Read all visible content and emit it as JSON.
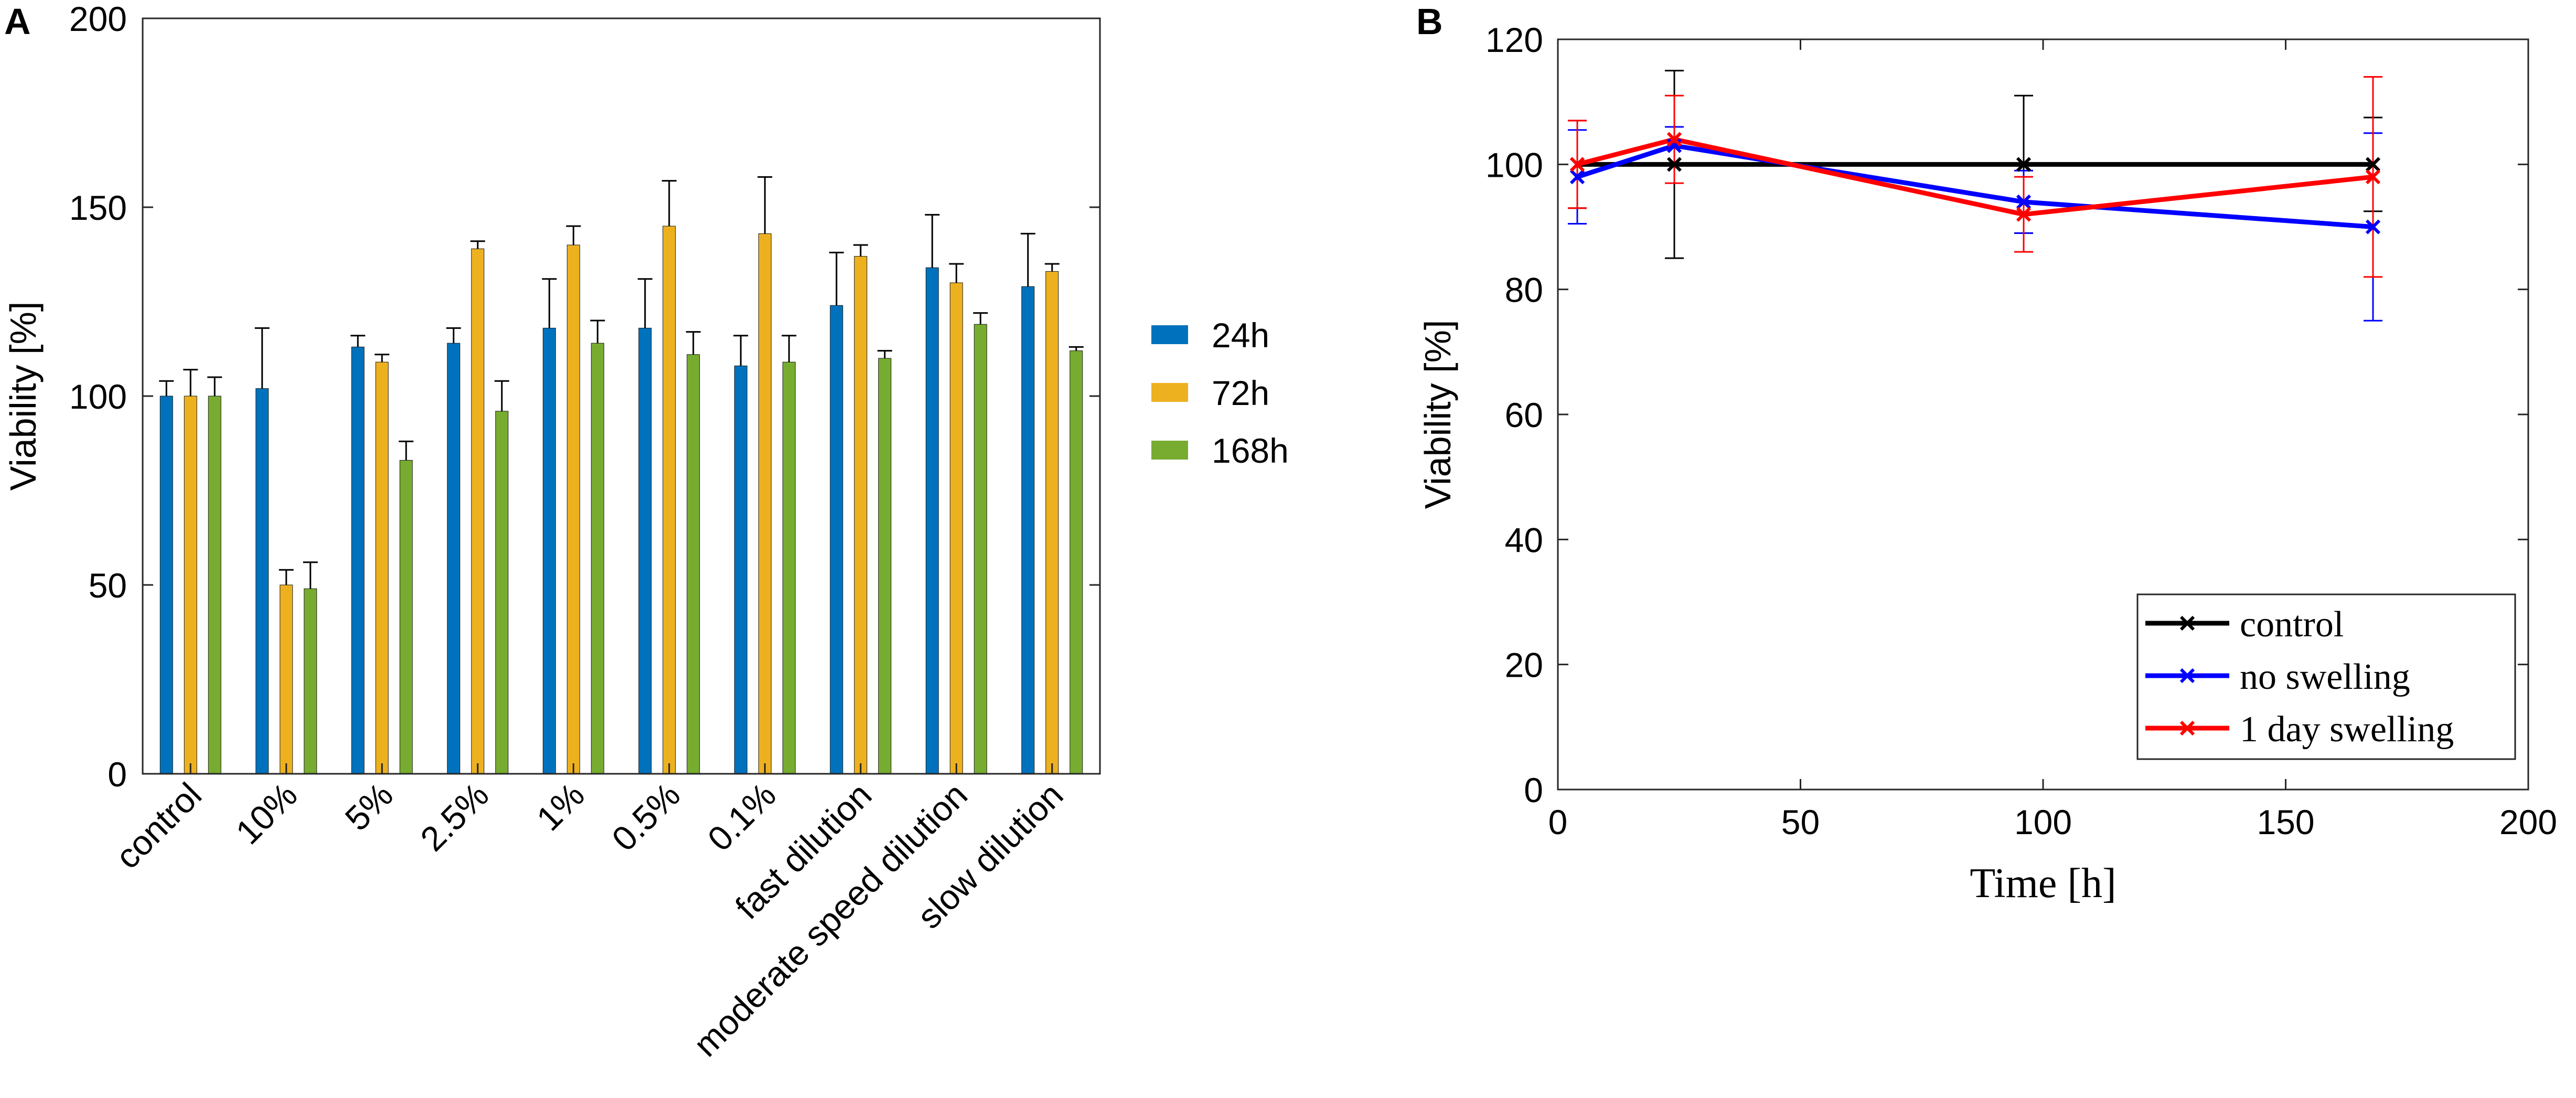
{
  "chart_data": [
    {
      "panel_label": "A",
      "type": "bar",
      "title": "",
      "xlabel": "",
      "ylabel": "Viability [%]",
      "ylim": [
        0,
        200
      ],
      "yticks": [
        0,
        50,
        100,
        150,
        200
      ],
      "grid": false,
      "legend_position": "right",
      "categories": [
        "control",
        "10%",
        "5%",
        "2.5%",
        "1%",
        "0.5%",
        "0.1%",
        "fast dilution",
        "moderate speed dilution",
        "slow dilution"
      ],
      "series": [
        {
          "name": "24h",
          "color": "#0072BD",
          "values": [
            100,
            102,
            113,
            114,
            118,
            118,
            108,
            124,
            134,
            129
          ],
          "errors": [
            4,
            16,
            3,
            4,
            13,
            13,
            8,
            14,
            14,
            14
          ]
        },
        {
          "name": "72h",
          "color": "#EDB120",
          "values": [
            100,
            50,
            109,
            139,
            140,
            145,
            143,
            137,
            130,
            133
          ],
          "errors": [
            7,
            4,
            2,
            2,
            5,
            12,
            15,
            3,
            5,
            2
          ]
        },
        {
          "name": "168h",
          "color": "#77AC30",
          "values": [
            100,
            49,
            83,
            96,
            114,
            111,
            109,
            110,
            119,
            112
          ],
          "errors": [
            5,
            7,
            5,
            8,
            6,
            6,
            7,
            2,
            3,
            1
          ]
        }
      ]
    },
    {
      "panel_label": "B",
      "type": "line",
      "title": "",
      "xlabel": "Time [h]",
      "ylabel": "Viability [%]",
      "xlim": [
        0,
        200
      ],
      "ylim": [
        0,
        120
      ],
      "xticks": [
        0,
        50,
        100,
        150,
        200
      ],
      "yticks": [
        0,
        20,
        40,
        60,
        80,
        100,
        120
      ],
      "grid": false,
      "legend_position": "bottom-right",
      "x": [
        4,
        24,
        96,
        168
      ],
      "series": [
        {
          "name": "control",
          "color": "#000000",
          "values": [
            100,
            100,
            100,
            100
          ],
          "errors": [
            7,
            15,
            11,
            7.5
          ]
        },
        {
          "name": "no swelling",
          "color": "#0000FF",
          "values": [
            98,
            103,
            94,
            90
          ],
          "errors": [
            7.5,
            3,
            5,
            15
          ]
        },
        {
          "name": "1 day swelling",
          "color": "#FF0000",
          "values": [
            100,
            104,
            92,
            98
          ],
          "errors": [
            7,
            7,
            6,
            16
          ]
        }
      ]
    }
  ]
}
